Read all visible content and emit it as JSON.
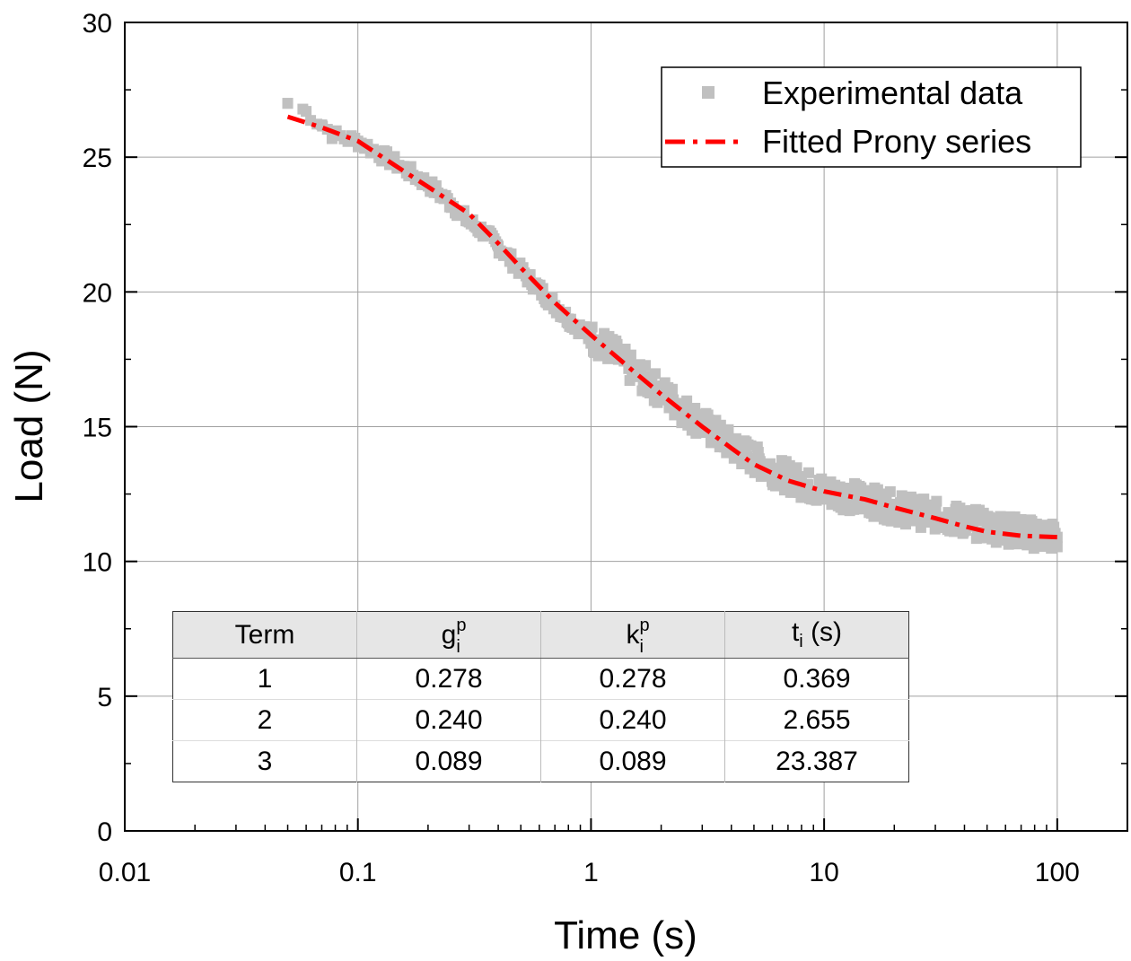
{
  "chart_data": {
    "type": "scatter",
    "xscale": "log",
    "xlim": [
      0.01,
      200
    ],
    "ylim": [
      0,
      30
    ],
    "xlabel": "Time (s)",
    "ylabel": "Load (N)",
    "x_ticks": [
      0.01,
      0.1,
      1,
      10,
      100
    ],
    "x_tick_labels": [
      "0.01",
      "0.1",
      "1",
      "10",
      "100"
    ],
    "y_ticks": [
      0,
      5,
      10,
      15,
      20,
      25,
      30
    ],
    "y_tick_labels": [
      "0",
      "5",
      "10",
      "15",
      "20",
      "25",
      "30"
    ],
    "grid": true,
    "legend": {
      "position": "top-right",
      "entries": [
        "Experimental data",
        "Fitted Prony series"
      ]
    },
    "series": [
      {
        "name": "Experimental data",
        "style": "markers",
        "color": "#c0c0c0",
        "x": [
          0.05,
          0.06,
          0.07,
          0.08,
          0.1,
          0.12,
          0.15,
          0.2,
          0.25,
          0.3,
          0.35,
          0.4,
          0.5,
          0.6,
          0.7,
          0.8,
          1.0,
          1.2,
          1.5,
          2.0,
          2.5,
          3.0,
          4.0,
          5.0,
          6.0,
          8.0,
          10,
          15,
          20,
          30,
          40,
          50,
          60,
          80,
          100
        ],
        "y": [
          27.0,
          26.7,
          26.2,
          25.8,
          25.6,
          25.2,
          24.7,
          24.0,
          23.3,
          22.6,
          22.2,
          21.7,
          20.8,
          20.1,
          19.5,
          19.0,
          18.3,
          17.9,
          17.1,
          16.3,
          15.6,
          15.1,
          14.3,
          13.8,
          13.4,
          12.9,
          12.6,
          12.3,
          12.0,
          11.7,
          11.5,
          11.3,
          11.2,
          11.0,
          10.9
        ]
      },
      {
        "name": "Fitted Prony series",
        "style": "dash-dot",
        "color": "#ff0000",
        "x": [
          0.05,
          0.07,
          0.1,
          0.15,
          0.2,
          0.3,
          0.4,
          0.5,
          0.7,
          1.0,
          1.5,
          2.0,
          3.0,
          4.0,
          5.0,
          7.0,
          10,
          15,
          20,
          30,
          40,
          50,
          70,
          100
        ],
        "y": [
          26.5,
          26.1,
          25.6,
          24.6,
          23.9,
          22.9,
          21.8,
          20.9,
          19.6,
          18.4,
          17.1,
          16.2,
          15.0,
          14.2,
          13.6,
          13.0,
          12.6,
          12.3,
          12.0,
          11.6,
          11.3,
          11.1,
          10.95,
          10.9
        ]
      }
    ]
  },
  "table": {
    "headers": {
      "term": "Term",
      "g_base": "g",
      "g_sub": "i",
      "g_sup": "p",
      "k_base": "k",
      "k_sub": "i",
      "k_sup": "p",
      "t_base": "t",
      "t_sub": "i",
      "t_unit": " (s)"
    },
    "rows": [
      {
        "term": "1",
        "g": "0.278",
        "k": "0.278",
        "t": "0.369"
      },
      {
        "term": "2",
        "g": "0.240",
        "k": "0.240",
        "t": "2.655"
      },
      {
        "term": "3",
        "g": "0.089",
        "k": "0.089",
        "t": "23.387"
      }
    ]
  }
}
